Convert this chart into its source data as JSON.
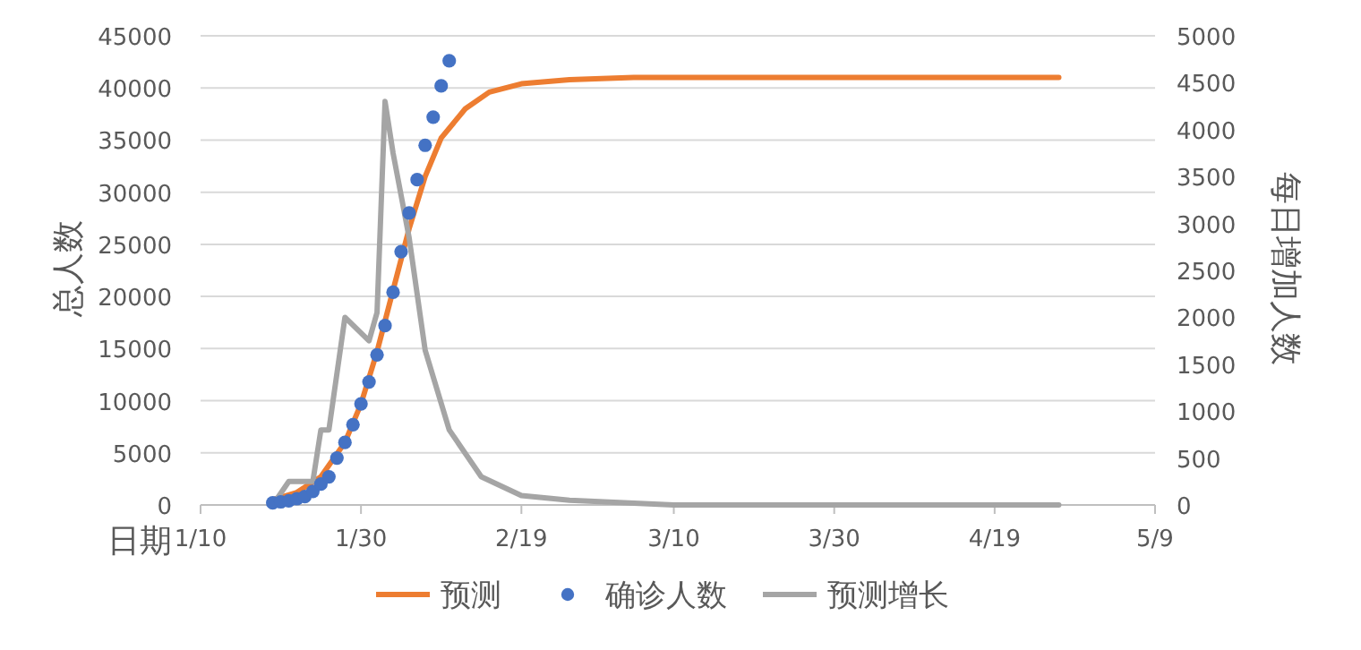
{
  "chart_data": {
    "type": "line",
    "xlabel": "日期",
    "ylabel": "总人数",
    "y2label": "每日增加人数",
    "xlim": [
      "--01-10",
      "--05-09"
    ],
    "xticks": [
      {
        "value": "--01-10",
        "label": "1/10"
      },
      {
        "value": "--01-30",
        "label": "1/30"
      },
      {
        "value": "--02-19",
        "label": "2/19"
      },
      {
        "value": "--03-10",
        "label": "3/10"
      },
      {
        "value": "--03-30",
        "label": "3/30"
      },
      {
        "value": "--04-19",
        "label": "4/19"
      },
      {
        "value": "--05-09",
        "label": "5/9"
      }
    ],
    "ylim": [
      0,
      45000
    ],
    "yticks": [
      0,
      5000,
      10000,
      15000,
      20000,
      25000,
      30000,
      35000,
      40000,
      45000
    ],
    "y2lim": [
      0,
      5000
    ],
    "y2ticks": [
      0,
      500,
      1000,
      1500,
      2000,
      2500,
      3000,
      3500,
      4000,
      4500,
      5000
    ],
    "grid": "y",
    "legend": "bottom",
    "series": [
      {
        "name": "预测",
        "color": "#ed7d31",
        "x": [
          "--01-19",
          "--01-22",
          "--01-25",
          "--01-28",
          "--01-30",
          "--02-01",
          "--02-03",
          "--02-05",
          "--02-07",
          "--02-09",
          "--02-12",
          "--02-15",
          "--02-19",
          "--02-25",
          "--03-05",
          "--04-27"
        ],
        "values": [
          500,
          1200,
          2700,
          6000,
          9700,
          14700,
          20600,
          26500,
          31500,
          35200,
          38000,
          39600,
          40400,
          40800,
          41000,
          41000
        ]
      },
      {
        "name": "确诊人数",
        "type": "scatter",
        "marker": "circle",
        "color": "#4472c4",
        "x": [
          "--01-19",
          "--01-20",
          "--01-21",
          "--01-22",
          "--01-23",
          "--01-24",
          "--01-25",
          "--01-26",
          "--01-27",
          "--01-28",
          "--01-29",
          "--01-30",
          "--01-31",
          "--02-01",
          "--02-02",
          "--02-03",
          "--02-04",
          "--02-05",
          "--02-06",
          "--02-07",
          "--02-08",
          "--02-09",
          "--02-10"
        ],
        "values": [
          200,
          300,
          400,
          600,
          800,
          1300,
          2000,
          2700,
          4500,
          6000,
          7700,
          9700,
          11800,
          14400,
          17200,
          20400,
          24300,
          28000,
          31200,
          34500,
          37200,
          40200,
          42600
        ]
      },
      {
        "name": "预测增长",
        "axis": "y2",
        "color": "#a5a5a5",
        "x": [
          "--01-19",
          "--01-21",
          "--01-24",
          "--01-25",
          "--01-26",
          "--01-28",
          "--01-31",
          "--02-01",
          "--02-02",
          "--02-03",
          "--02-05",
          "--02-07",
          "--02-10",
          "--02-14",
          "--02-19",
          "--02-25",
          "--03-10",
          "--04-27"
        ],
        "values": [
          0,
          250,
          250,
          800,
          800,
          2000,
          1750,
          2050,
          4300,
          3750,
          2850,
          1650,
          800,
          300,
          100,
          50,
          0,
          0
        ]
      }
    ]
  }
}
